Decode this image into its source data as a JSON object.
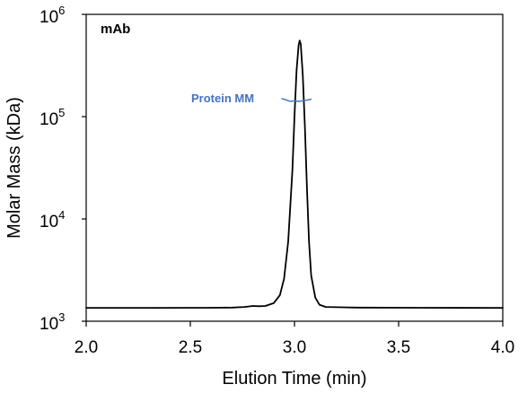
{
  "chart_data": {
    "type": "line",
    "xlabel": "Elution Time (min)",
    "ylabel": "Molar Mass (kDa)",
    "xlim": [
      2.0,
      4.0
    ],
    "ylim": [
      1000,
      1000000
    ],
    "yscale": "log",
    "grid": false,
    "x_ticks": [
      "2.0",
      "2.5",
      "3.0",
      "3.5",
      "4.0"
    ],
    "y_ticks": [
      {
        "base": "10",
        "exp": "3"
      },
      {
        "base": "10",
        "exp": "4"
      },
      {
        "base": "10",
        "exp": "5"
      },
      {
        "base": "10",
        "exp": "6"
      }
    ],
    "annotations": [
      {
        "text": "mAb"
      },
      {
        "text": "Protein MM"
      }
    ],
    "colors": {
      "signal": "#000000",
      "protein_mm": "#4472c4"
    },
    "series": [
      {
        "color": "#000000",
        "points": [
          [
            2.0,
            1350
          ],
          [
            2.3,
            1350
          ],
          [
            2.6,
            1355
          ],
          [
            2.7,
            1360
          ],
          [
            2.76,
            1380
          ],
          [
            2.8,
            1410
          ],
          [
            2.83,
            1400
          ],
          [
            2.86,
            1410
          ],
          [
            2.9,
            1500
          ],
          [
            2.93,
            1800
          ],
          [
            2.95,
            2600
          ],
          [
            2.97,
            6000
          ],
          [
            2.99,
            30000
          ],
          [
            3.0,
            100000
          ],
          [
            3.01,
            280000
          ],
          [
            3.02,
            500000
          ],
          [
            3.025,
            555000
          ],
          [
            3.03,
            510000
          ],
          [
            3.04,
            250000
          ],
          [
            3.05,
            80000
          ],
          [
            3.06,
            20000
          ],
          [
            3.07,
            6000
          ],
          [
            3.08,
            2800
          ],
          [
            3.1,
            1700
          ],
          [
            3.12,
            1450
          ],
          [
            3.15,
            1380
          ],
          [
            3.3,
            1360
          ],
          [
            3.6,
            1355
          ],
          [
            4.0,
            1350
          ]
        ]
      },
      {
        "name": "Protein MM",
        "color": "#4472c4",
        "points": [
          [
            2.94,
            150000
          ],
          [
            2.96,
            146000
          ],
          [
            2.98,
            141000
          ],
          [
            3.0,
            143000
          ],
          [
            3.02,
            141000
          ],
          [
            3.04,
            143000
          ],
          [
            3.06,
            145000
          ],
          [
            3.08,
            148000
          ]
        ]
      }
    ]
  }
}
